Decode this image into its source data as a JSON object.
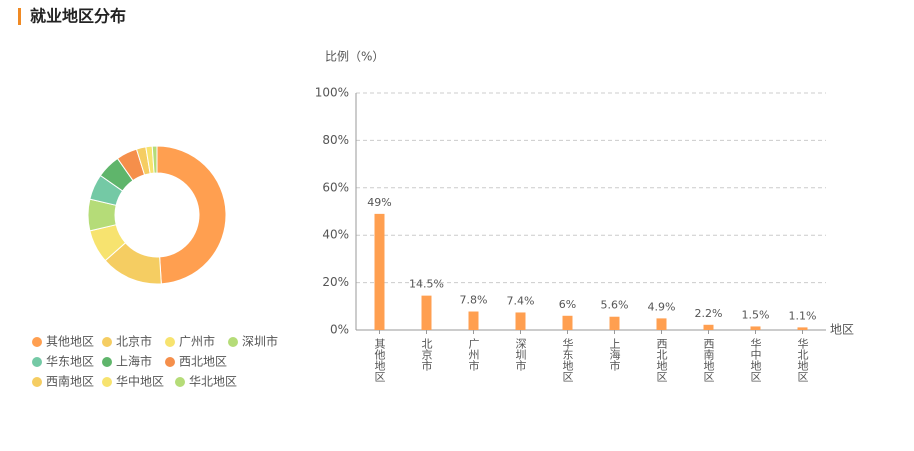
{
  "header": {
    "title": "就业地区分布"
  },
  "chart_data": [
    {
      "type": "donut",
      "categories": [
        "其他地区",
        "北京市",
        "广州市",
        "深圳市",
        "华东地区",
        "上海市",
        "西北地区",
        "西南地区",
        "华中地区",
        "华北地区"
      ],
      "values": [
        49,
        14.5,
        7.8,
        7.4,
        6,
        5.6,
        4.9,
        2.2,
        1.5,
        1.1
      ],
      "colors": [
        "#ff9f50",
        "#f5cd62",
        "#f7e36f",
        "#b5dc78",
        "#74c9a5",
        "#5fb56b",
        "#f58f4b",
        "#f5cd62",
        "#f7e36f",
        "#b5dc78"
      ]
    },
    {
      "type": "bar",
      "y_label": "比例（%）",
      "x_label": "地区",
      "categories": [
        "其他地区",
        "北京市",
        "广州市",
        "深圳市",
        "华东地区",
        "上海市",
        "西北地区",
        "西南地区",
        "华中地区",
        "华北地区"
      ],
      "values": [
        49,
        14.5,
        7.8,
        7.4,
        6,
        5.6,
        4.9,
        2.2,
        1.5,
        1.1
      ],
      "value_labels": [
        "49%",
        "14.5%",
        "7.8%",
        "7.4%",
        "6%",
        "5.6%",
        "4.9%",
        "2.2%",
        "1.5%",
        "1.1%"
      ],
      "color": "#ff9f50",
      "ylim": [
        0,
        100
      ],
      "yticks": [
        {
          "value": 0,
          "label": "0%"
        },
        {
          "value": 20,
          "label": "20%"
        },
        {
          "value": 40,
          "label": "40%"
        },
        {
          "value": 60,
          "label": "60%"
        },
        {
          "value": 80,
          "label": "80%"
        },
        {
          "value": 100,
          "label": "100%"
        }
      ],
      "grid": true
    }
  ]
}
